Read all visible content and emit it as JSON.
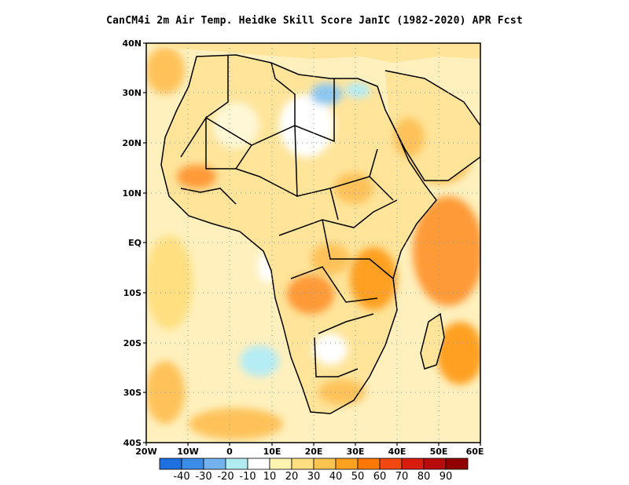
{
  "title": "CanCM4i  2m Air Temp. Heidke Skill Score JanIC (1982-2020) APR Fcst",
  "map": {
    "lat_labels": [
      "40N",
      "30N",
      "20N",
      "10N",
      "EQ",
      "10S",
      "20S",
      "30S",
      "40S"
    ],
    "lon_labels": [
      "20W",
      "10W",
      "0",
      "10E",
      "20E",
      "30E",
      "40E",
      "50E",
      "60E"
    ],
    "lon_range": [
      -20,
      60
    ],
    "lat_range": [
      -40,
      40
    ],
    "grid": "dotted"
  },
  "colorbar": {
    "labels": [
      "-40",
      "-30",
      "-20",
      "-10",
      "10",
      "20",
      "30",
      "40",
      "50",
      "60",
      "70",
      "80",
      "90"
    ],
    "colors": [
      "#1e6fe0",
      "#3a8ce8",
      "#74b2ee",
      "#b0ecf0",
      "#ffffff",
      "#fff3b0",
      "#ffdf80",
      "#ffc450",
      "#ffa020",
      "#ff7800",
      "#f04810",
      "#d81c10",
      "#b80c0c",
      "#900000"
    ]
  },
  "fields": {
    "colors": {
      "ocean": "#fff0bd",
      "land": "#ffe49a",
      "warm": "#ffc25a",
      "hot": "#ff9a38",
      "hotter": "#f77a24",
      "cool": "#b6ecf4",
      "cooler": "#8cc8f0",
      "white": "#ffffff"
    }
  }
}
